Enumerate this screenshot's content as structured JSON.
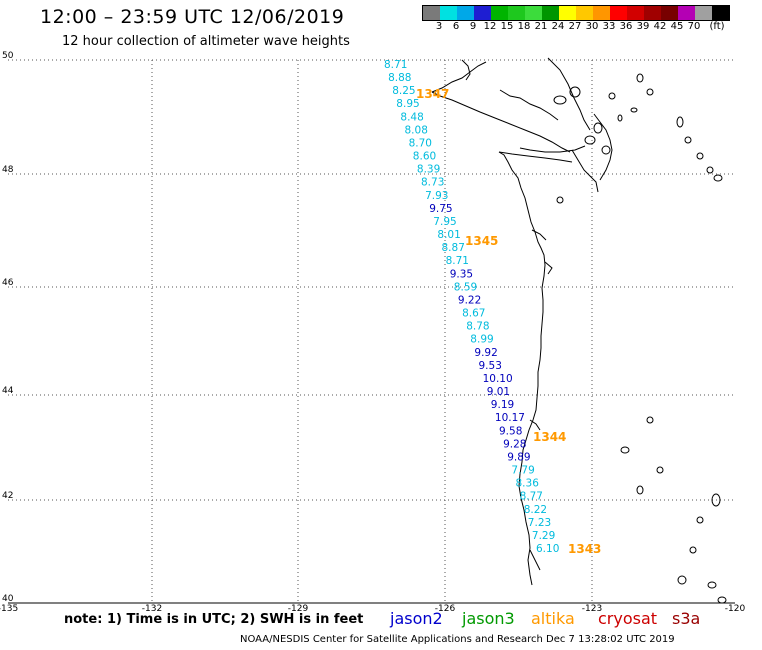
{
  "title": "12:00 – 23:59 UTC 12/06/2019",
  "subtitle": "12 hour collection of altimeter wave heights",
  "color_scale": {
    "colors": [
      "#7a7a7a",
      "#00e1e1",
      "#00a8e8",
      "#1e1ed2",
      "#00b400",
      "#1ec81e",
      "#3cdc3c",
      "#009600",
      "#ffff00",
      "#ffc800",
      "#ff9600",
      "#ff0000",
      "#d20000",
      "#a00000",
      "#780000",
      "#b400b4",
      "#a0a0a0",
      "#000000"
    ],
    "labels": [
      "3",
      "6",
      "9",
      "12",
      "15",
      "18",
      "21",
      "24",
      "27",
      "30",
      "33",
      "36",
      "39",
      "42",
      "45",
      "70",
      "(ft)"
    ]
  },
  "axes": {
    "lat_labels": [
      "50",
      "48",
      "46",
      "44",
      "42",
      "40"
    ],
    "lon_labels": [
      "-135",
      "-132",
      "-129",
      "-126",
      "-123",
      "-120"
    ]
  },
  "track_times": [
    {
      "text": "1347",
      "color": "#ff9900"
    },
    {
      "text": "1345",
      "color": "#ff9900"
    },
    {
      "text": "1344",
      "color": "#ff9900"
    },
    {
      "text": "1343",
      "color": "#ff9900"
    }
  ],
  "wave_heights": [
    {
      "v": "8.71",
      "c": "#00bbdd"
    },
    {
      "v": "8.88",
      "c": "#00bbdd"
    },
    {
      "v": "8.25",
      "c": "#00bbdd"
    },
    {
      "v": "8.95",
      "c": "#00bbdd"
    },
    {
      "v": "8.48",
      "c": "#00bbdd"
    },
    {
      "v": "8.08",
      "c": "#00bbdd"
    },
    {
      "v": "8.70",
      "c": "#00bbdd"
    },
    {
      "v": "8.60",
      "c": "#00bbdd"
    },
    {
      "v": "8.39",
      "c": "#00bbdd"
    },
    {
      "v": "8.73",
      "c": "#00bbdd"
    },
    {
      "v": "7.93",
      "c": "#00bbdd"
    },
    {
      "v": "9.75",
      "c": "#0000bb"
    },
    {
      "v": "7.95",
      "c": "#00bbdd"
    },
    {
      "v": "8.01",
      "c": "#00bbdd"
    },
    {
      "v": "8.87",
      "c": "#00bbdd"
    },
    {
      "v": "8.71",
      "c": "#00bbdd"
    },
    {
      "v": "9.35",
      "c": "#0000bb"
    },
    {
      "v": "8.59",
      "c": "#00bbdd"
    },
    {
      "v": "9.22",
      "c": "#0000bb"
    },
    {
      "v": "8.67",
      "c": "#00bbdd"
    },
    {
      "v": "8.78",
      "c": "#00bbdd"
    },
    {
      "v": "8.99",
      "c": "#00bbdd"
    },
    {
      "v": "9.92",
      "c": "#0000bb"
    },
    {
      "v": "9.53",
      "c": "#0000bb"
    },
    {
      "v": "10.10",
      "c": "#0000bb"
    },
    {
      "v": "9.01",
      "c": "#0000bb"
    },
    {
      "v": "9.19",
      "c": "#0000bb"
    },
    {
      "v": "10.17",
      "c": "#0000bb"
    },
    {
      "v": "9.58",
      "c": "#0000bb"
    },
    {
      "v": "9.28",
      "c": "#0000bb"
    },
    {
      "v": "9.89",
      "c": "#0000bb"
    },
    {
      "v": "7.79",
      "c": "#00bbdd"
    },
    {
      "v": "8.36",
      "c": "#00bbdd"
    },
    {
      "v": "8.77",
      "c": "#00bbdd"
    },
    {
      "v": "8.22",
      "c": "#00bbdd"
    },
    {
      "v": "7.23",
      "c": "#00bbdd"
    },
    {
      "v": "7.29",
      "c": "#00bbdd"
    },
    {
      "v": "6.10",
      "c": "#00bbdd"
    }
  ],
  "footer": {
    "note": "note:  1) Time is in UTC;  2) SWH is in feet",
    "satellites": [
      {
        "name": "jason2",
        "color": "#0000cc"
      },
      {
        "name": "jason3",
        "color": "#009900"
      },
      {
        "name": "altika",
        "color": "#ff9900"
      },
      {
        "name": "cryosat",
        "color": "#cc0000"
      },
      {
        "name": "s3a",
        "color": "#990000"
      }
    ],
    "credit": "NOAA/NESDIS Center for Satellite Applications and Research     Dec  7 13:28:02 UTC 2019"
  }
}
